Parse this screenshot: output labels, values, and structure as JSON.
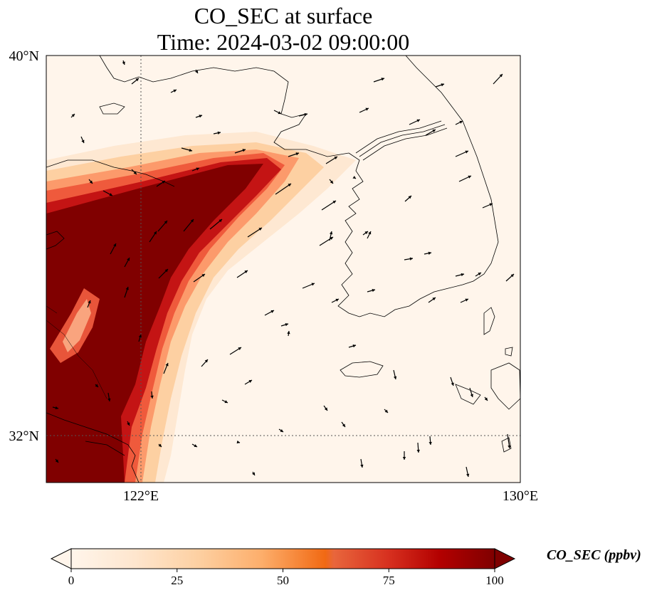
{
  "title": {
    "line1": "CO_SEC at surface",
    "line2": "Time: 2024-03-02 09:00:00"
  },
  "map": {
    "lat_labels": [
      {
        "value": 40,
        "text": "40°N"
      },
      {
        "value": 32,
        "text": "32°N"
      }
    ],
    "lon_labels": [
      {
        "value": 122,
        "text": "122°E"
      },
      {
        "value": 130,
        "text": "130°E"
      }
    ],
    "gridlines": "dotted",
    "region": "Yellow Sea / Korean Peninsula",
    "field_color_high": "#800000",
    "field_color_low": "#fff5eb",
    "wind_vectors": "shown"
  },
  "colorbar": {
    "label": "CO_SEC (ppbv)",
    "ticks": [
      "0",
      "25",
      "50",
      "75",
      "100"
    ],
    "min": 0,
    "max": 100,
    "colormap": "OrRd",
    "extend": "both"
  }
}
